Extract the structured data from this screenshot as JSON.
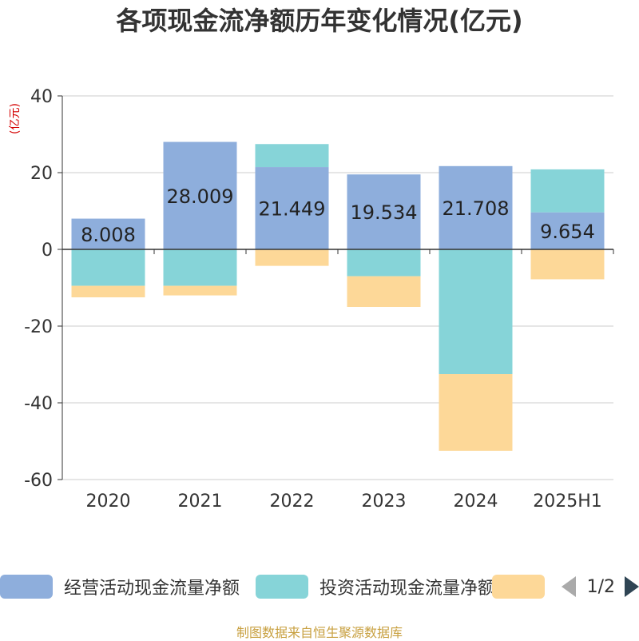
{
  "title": "各项现金流净额历年变化情况(亿元)",
  "unit_label": "(亿元)",
  "source": "制图数据来自恒生聚源数据库",
  "legend": {
    "items": [
      {
        "label": "经营活动现金流量净额",
        "color": "#8eaedc"
      },
      {
        "label": "投资活动现金流量净额",
        "color": "#86d4d8"
      },
      {
        "label": "",
        "color": "#fdd898"
      }
    ],
    "page": "1/2"
  },
  "chart_data": {
    "type": "bar",
    "stacked": true,
    "categories": [
      "2020",
      "2021",
      "2022",
      "2023",
      "2024",
      "2025H1"
    ],
    "ylim": [
      -60,
      40
    ],
    "yticks": [
      40,
      20,
      0,
      -20,
      -40,
      -60
    ],
    "grid": true,
    "legend_position": "bottom",
    "series": [
      {
        "name": "经营活动现金流量净额",
        "color": "#8eaedc",
        "values": [
          8.008,
          28.009,
          21.449,
          19.534,
          21.708,
          9.654
        ],
        "labels": [
          "8.008",
          "28.009",
          "21.449",
          "19.534",
          "21.708",
          "9.654"
        ]
      },
      {
        "name": "投资活动现金流量净额",
        "color": "#86d4d8",
        "values": [
          -9.5,
          -9.5,
          6.0,
          -7.0,
          -32.5,
          11.2
        ]
      },
      {
        "color": "#fdd898",
        "values": [
          -3.0,
          -2.5,
          -4.3,
          -8.0,
          -20.0,
          -7.8
        ]
      }
    ]
  }
}
